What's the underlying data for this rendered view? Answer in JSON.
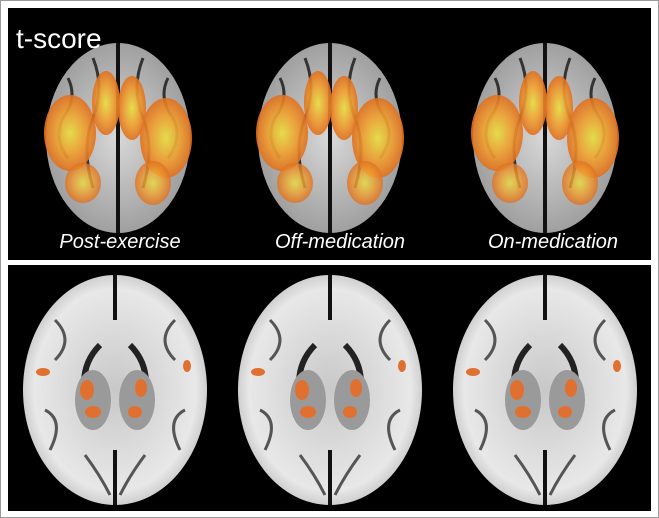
{
  "figure": {
    "title": "t-score",
    "labels": [
      "Post-exercise",
      "Off-medication",
      "On-medication"
    ]
  }
}
